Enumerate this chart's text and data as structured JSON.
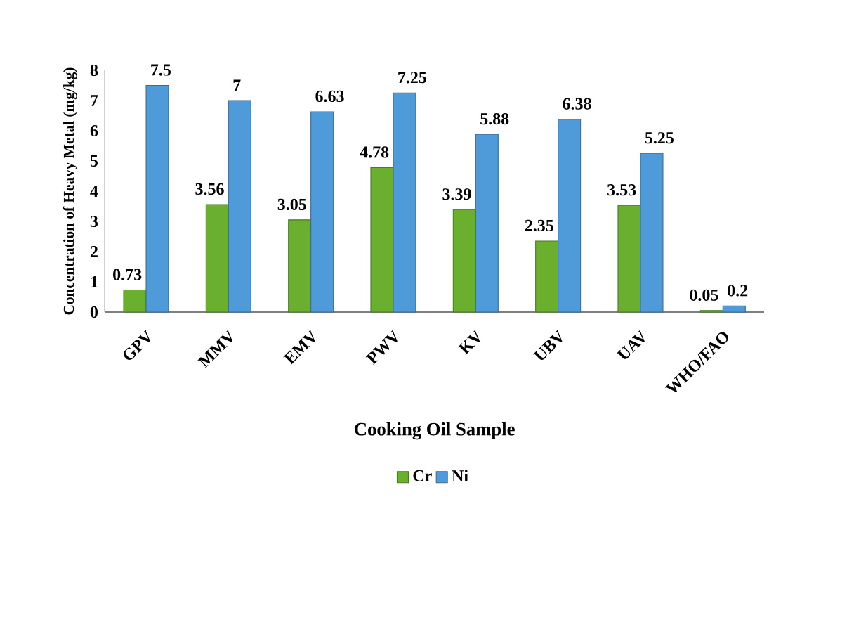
{
  "chart_data": {
    "type": "bar",
    "xlabel": "Cooking Oil Sample",
    "ylabel": "Concentration of Heavy Metal (mg/kg)",
    "categories": [
      "GPV",
      "MMV",
      "EMV",
      "PWV",
      "KV",
      "UBV",
      "UAV",
      "WHO/FAO"
    ],
    "series": [
      {
        "name": "Cr",
        "color": "#6aaf2e",
        "values": [
          0.73,
          3.56,
          3.05,
          4.78,
          3.39,
          2.35,
          3.53,
          0.05
        ]
      },
      {
        "name": "Ni",
        "color": "#4f9ad8",
        "values": [
          7.5,
          7,
          6.63,
          7.25,
          5.88,
          6.38,
          5.25,
          0.2
        ]
      }
    ],
    "ylim": [
      0,
      8
    ],
    "yticks": [
      0,
      1,
      2,
      3,
      4,
      5,
      6,
      7,
      8
    ],
    "data_labels": true,
    "legend": "bottom",
    "grid": false
  }
}
